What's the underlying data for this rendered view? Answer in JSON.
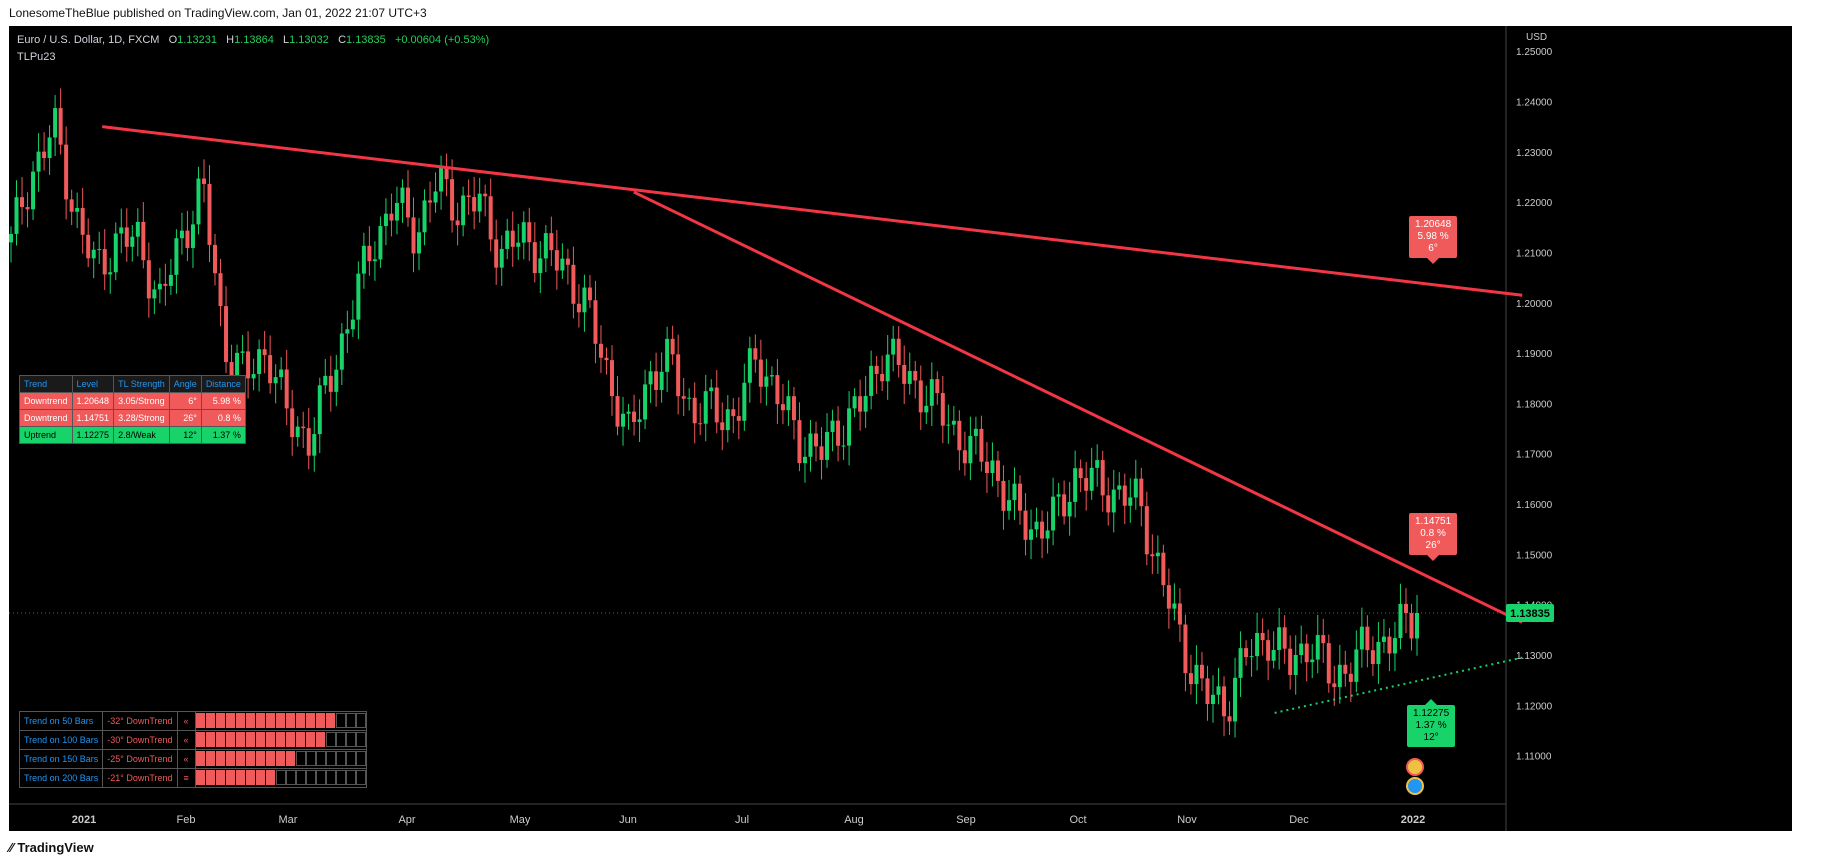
{
  "header": {
    "publisher": "LonesomeTheBlue published on TradingView.com, Jan 01, 2022 21:07 UTC+3"
  },
  "footer": {
    "brand": "TradingView"
  },
  "legend": {
    "symbol": "Euro / U.S. Dollar, 1D, FXCM",
    "o_label": "O",
    "o": "1.13231",
    "h_label": "H",
    "h": "1.13864",
    "l_label": "L",
    "l": "1.13032",
    "c_label": "C",
    "c": "1.13835",
    "change": "+0.00604 (+0.53%)",
    "indicator": "TLPu23"
  },
  "currency": "USD",
  "trend_table": {
    "headers": [
      "Trend",
      "Level",
      "TL Strength",
      "Angle",
      "Distance"
    ],
    "rows": [
      {
        "trend": "Downtrend",
        "level": "1.20648",
        "strength": "3.05/Strong",
        "angle": "6°",
        "distance": "5.98 %",
        "color": "#f05a5a"
      },
      {
        "trend": "Downtrend",
        "level": "1.14751",
        "strength": "3.28/Strong",
        "angle": "26°",
        "distance": "0.8 %",
        "color": "#f05a5a"
      },
      {
        "trend": "Uptrend",
        "level": "1.12275",
        "strength": "2.8/Weak",
        "angle": "12°",
        "distance": "1.37 %",
        "color": "#17d36a"
      }
    ]
  },
  "bars_table": [
    {
      "label": "Trend on 50 Bars",
      "value": "-32° DownTrend",
      "symbol": "«",
      "filled": 14
    },
    {
      "label": "Trend on 100 Bars",
      "value": "-30° DownTrend",
      "symbol": "«",
      "filled": 13
    },
    {
      "label": "Trend on 150 Bars",
      "value": "-25° DownTrend",
      "symbol": "«",
      "filled": 10
    },
    {
      "label": "Trend on 200 Bars",
      "value": "-21° DownTrend",
      "symbol": "≡",
      "filled": 8
    }
  ],
  "callouts": [
    {
      "price": "1.20648",
      "pct": "5.98 %",
      "angle": "6°",
      "color": "#f05a5a"
    },
    {
      "price": "1.14751",
      "pct": "0.8 %",
      "angle": "26°",
      "color": "#f05a5a"
    },
    {
      "price": "1.12275",
      "pct": "1.37 %",
      "angle": "12°",
      "color": "#17d36a"
    }
  ],
  "last_price": "1.13835",
  "chart_data": {
    "type": "candlestick",
    "title": "Euro / U.S. Dollar, 1D, FXCM",
    "ylim": [
      1.1,
      1.255
    ],
    "y_ticks": [
      "1.25000",
      "1.24000",
      "1.23000",
      "1.22000",
      "1.21000",
      "1.20000",
      "1.19000",
      "1.18000",
      "1.17000",
      "1.16000",
      "1.15000",
      "1.14000",
      "1.13000",
      "1.12000",
      "1.11000"
    ],
    "x_ticks": [
      "2021",
      "Feb",
      "Mar",
      "Apr",
      "May",
      "Jun",
      "Jul",
      "Aug",
      "Sep",
      "Oct",
      "Nov",
      "Dec",
      "2022"
    ],
    "anchors": [
      1.212,
      1.226,
      1.235,
      1.218,
      1.206,
      1.213,
      1.212,
      1.2,
      1.213,
      1.223,
      1.192,
      1.185,
      1.191,
      1.177,
      1.173,
      1.185,
      1.199,
      1.212,
      1.22,
      1.214,
      1.224,
      1.219,
      1.22,
      1.21,
      1.213,
      1.21,
      1.207,
      1.199,
      1.186,
      1.173,
      1.186,
      1.188,
      1.178,
      1.179,
      1.177,
      1.19,
      1.181,
      1.173,
      1.17,
      1.176,
      1.18,
      1.191,
      1.185,
      1.182,
      1.176,
      1.171,
      1.168,
      1.159,
      1.155,
      1.157,
      1.166,
      1.164,
      1.162,
      1.16,
      1.145,
      1.132,
      1.122,
      1.12,
      1.13,
      1.134,
      1.128,
      1.133,
      1.125,
      1.129,
      1.132,
      1.134,
      1.1384
    ],
    "lines": [
      {
        "kind": "downtrend",
        "from": {
          "x": "2021-01-06",
          "y": 1.235
        },
        "to": {
          "x": "2022-01-31",
          "y": 1.2015
        },
        "color": "#f23645"
      },
      {
        "kind": "downtrend",
        "from": {
          "x": "2021-06-01",
          "y": 1.222
        },
        "to": {
          "x": "2022-01-31",
          "y": 1.1365
        },
        "color": "#f23645"
      },
      {
        "kind": "uptrend",
        "from": {
          "x": "2021-11-24",
          "y": 1.1185
        },
        "to": {
          "x": "2022-01-31",
          "y": 1.1295
        },
        "color": "#17d36a",
        "style": "dotted"
      }
    ],
    "last_price": 1.13835
  }
}
